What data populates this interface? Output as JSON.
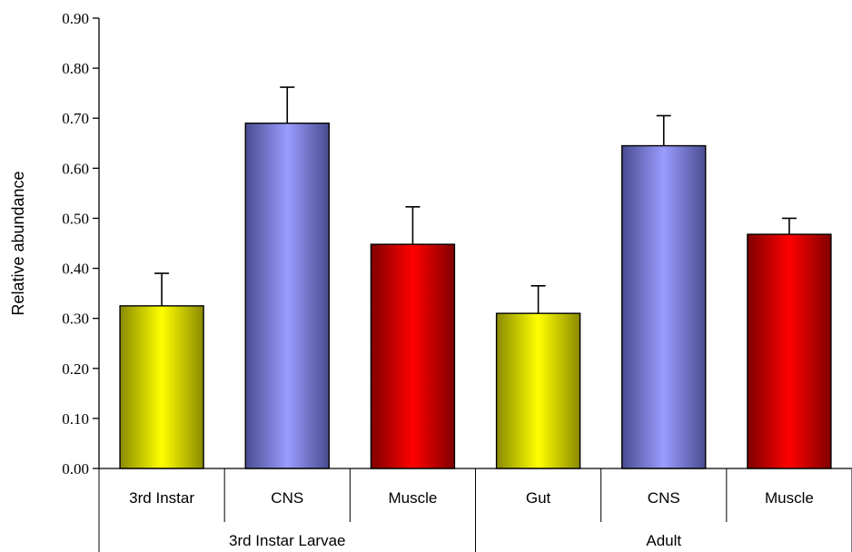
{
  "chart_data": {
    "type": "bar",
    "title": "",
    "xlabel": "",
    "ylabel": "Relative abundance",
    "ylim": [
      0,
      0.9
    ],
    "yticks": [
      "0.00",
      "0.10",
      "0.20",
      "0.30",
      "0.40",
      "0.50",
      "0.60",
      "0.70",
      "0.80",
      "0.90"
    ],
    "ytick_values": [
      0,
      0.1,
      0.2,
      0.3,
      0.4,
      0.5,
      0.6,
      0.7,
      0.8,
      0.9
    ],
    "grid": false,
    "legend": "none",
    "groups": [
      {
        "label": "3rd Instar Larvae",
        "categories": [
          0,
          1,
          2
        ]
      },
      {
        "label": "Adult",
        "categories": [
          3,
          4,
          5
        ]
      }
    ],
    "categories": [
      "3rd Instar",
      "CNS",
      "Muscle",
      "Gut",
      "CNS",
      "Muscle"
    ],
    "values": [
      0.325,
      0.69,
      0.448,
      0.31,
      0.645,
      0.468
    ],
    "errors": [
      0.065,
      0.072,
      0.075,
      0.055,
      0.06,
      0.032
    ],
    "colors": [
      "#ffff00",
      "#9a9cff",
      "#ff0000",
      "#ffff00",
      "#9a9cff",
      "#ff0000"
    ]
  }
}
